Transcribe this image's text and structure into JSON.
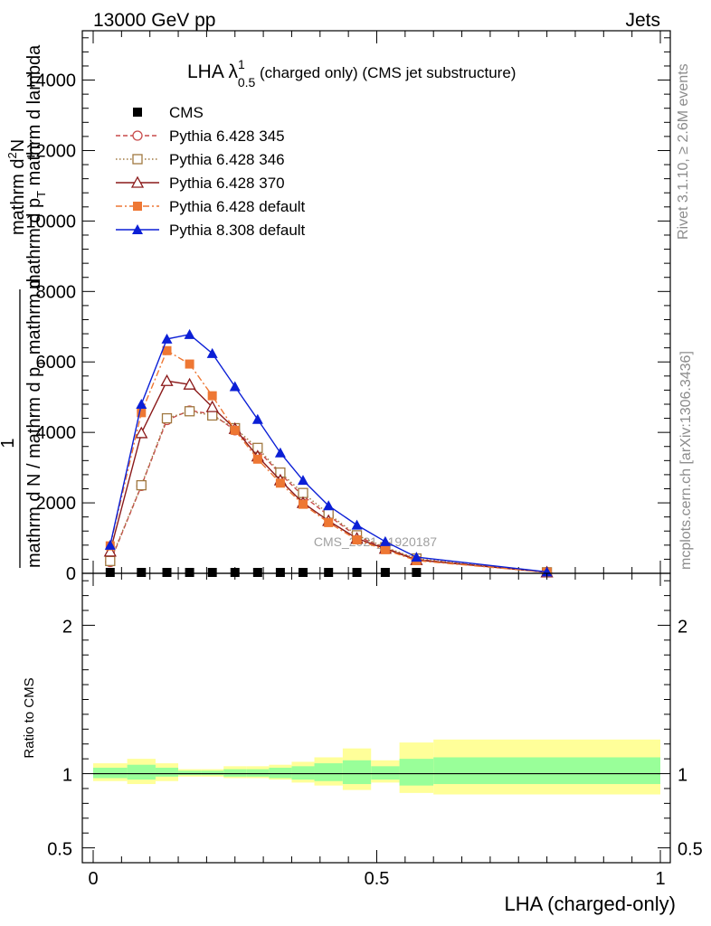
{
  "header": {
    "left": "13000 GeV pp",
    "right": "Jets"
  },
  "side": {
    "rivet": "Rivet 3.1.10, ≥ 2.6M events",
    "mcplots": "mcplots.cern.ch [arXiv:1306.3436]"
  },
  "watermark": "CMS_2021_I1920187",
  "main": {
    "title_main": "LHA λ",
    "title_sup": "1",
    "title_sub": "0.5",
    "title_rest": " (charged only) (CMS jet substructure)",
    "ylabel_top": "1",
    "ylabel_bottom": "mathrm d N / mathrm d p",
    "ylabel_bottom_sub": "T",
    "ylabel_bottom_rest": " mathrm d",
    "ylabel_upper_1": "mathrm d",
    "ylabel_upper_sup": "2",
    "ylabel_upper_2": "N",
    "ylabel_upper_3": "mathrm d p",
    "ylabel_upper_sub": "T",
    "ylabel_upper_4": " mathrm d lambda"
  },
  "ratio": {
    "ylabel": "Ratio to CMS"
  },
  "xlabel": "LHA (charged-only)",
  "chart_data": {
    "type": "line",
    "x": [
      0.03,
      0.085,
      0.13,
      0.17,
      0.21,
      0.25,
      0.29,
      0.33,
      0.37,
      0.415,
      0.465,
      0.515,
      0.57,
      0.8
    ],
    "ylim": [
      0,
      15400
    ],
    "yticks": [
      0,
      2000,
      4000,
      6000,
      8000,
      10000,
      12000,
      14000
    ],
    "ytick_labels": [
      "0",
      "2000",
      "4000",
      "6000",
      "8000",
      "10000",
      "12000",
      "14000"
    ],
    "xlim": [
      -0.02,
      1.0
    ],
    "xticks": [
      0,
      0.5,
      1
    ],
    "xtick_labels": [
      "0",
      "0.5",
      "1"
    ],
    "legend_position": "top-left",
    "series": [
      {
        "name": "CMS",
        "color": "#000000",
        "marker": "square-filled",
        "x": [
          0.03,
          0.085,
          0.13,
          0.17,
          0.21,
          0.25,
          0.29,
          0.33,
          0.37,
          0.415,
          0.465,
          0.515,
          0.57
        ],
        "values": [
          20,
          20,
          20,
          20,
          20,
          20,
          20,
          20,
          20,
          20,
          20,
          20,
          20
        ]
      },
      {
        "name": "Pythia 6.428 345",
        "color": "#c84a4a",
        "marker": "circle-open",
        "dash": "5,3",
        "values": [
          320,
          2480,
          4350,
          4620,
          4520,
          4060,
          3500,
          2820,
          2200,
          1640,
          1050,
          720,
          400,
          30
        ]
      },
      {
        "name": "Pythia 6.428 346",
        "color": "#a07840",
        "marker": "square-open",
        "dash": "1.5,2.5",
        "values": [
          350,
          2500,
          4400,
          4600,
          4480,
          4120,
          3560,
          2860,
          2280,
          1690,
          1080,
          740,
          420,
          30
        ]
      },
      {
        "name": "Pythia 6.428 370",
        "color": "#8b1a1a",
        "marker": "triangle-open",
        "dash": "",
        "values": [
          620,
          3980,
          5460,
          5360,
          4720,
          4100,
          3320,
          2640,
          2000,
          1490,
          990,
          700,
          380,
          30
        ]
      },
      {
        "name": "Pythia 6.428 default",
        "color": "#ee7733",
        "marker": "square-filled",
        "dash": "7,3,2,3",
        "values": [
          780,
          4560,
          6320,
          5940,
          5040,
          4060,
          3240,
          2560,
          1960,
          1440,
          950,
          670,
          360,
          30
        ]
      },
      {
        "name": "Pythia 8.308 default",
        "color": "#0b1fd6",
        "marker": "triangle-filled",
        "dash": "",
        "values": [
          800,
          4800,
          6650,
          6780,
          6240,
          5300,
          4370,
          3420,
          2640,
          1920,
          1370,
          900,
          460,
          40
        ]
      }
    ],
    "ratio": {
      "ylim": [
        0.4,
        2.35
      ],
      "yticks": [
        0.5,
        1,
        2
      ],
      "ytick_labels": [
        "0.5",
        "1",
        "2"
      ],
      "bin_edges": [
        0.0,
        0.06,
        0.11,
        0.15,
        0.19,
        0.23,
        0.27,
        0.31,
        0.35,
        0.39,
        0.44,
        0.49,
        0.54,
        0.6,
        1.0
      ],
      "inner_band": [
        [
          0.97,
          1.04
        ],
        [
          0.96,
          1.06
        ],
        [
          0.98,
          1.04
        ],
        [
          0.99,
          1.02
        ],
        [
          0.99,
          1.02
        ],
        [
          0.98,
          1.03
        ],
        [
          0.98,
          1.03
        ],
        [
          0.97,
          1.04
        ],
        [
          0.96,
          1.05
        ],
        [
          0.95,
          1.07
        ],
        [
          0.93,
          1.09
        ],
        [
          0.96,
          1.05
        ],
        [
          0.92,
          1.1
        ],
        [
          0.93,
          1.11
        ]
      ],
      "outer_band": [
        [
          0.95,
          1.07
        ],
        [
          0.93,
          1.1
        ],
        [
          0.95,
          1.07
        ],
        [
          0.98,
          1.03
        ],
        [
          0.98,
          1.03
        ],
        [
          0.97,
          1.05
        ],
        [
          0.97,
          1.05
        ],
        [
          0.96,
          1.06
        ],
        [
          0.94,
          1.08
        ],
        [
          0.92,
          1.11
        ],
        [
          0.89,
          1.17
        ],
        [
          0.94,
          1.09
        ],
        [
          0.87,
          1.21
        ],
        [
          0.86,
          1.23
        ]
      ],
      "inner_color": "#99ff99",
      "outer_color": "#ffff99"
    }
  }
}
